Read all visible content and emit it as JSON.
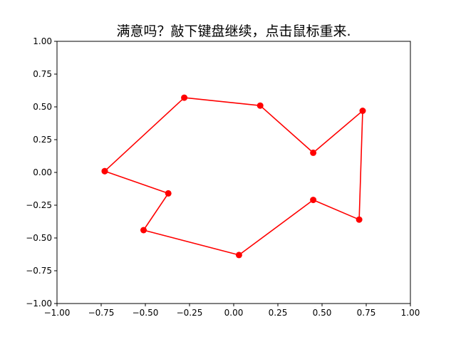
{
  "chart_data": {
    "type": "line",
    "title": "满意吗？敲下键盘继续，点击鼠标重来.",
    "xlabel": "",
    "ylabel": "",
    "xlim": [
      -1.0,
      1.0
    ],
    "ylim": [
      -1.0,
      1.0
    ],
    "xticks": [
      "−1.00",
      "−0.75",
      "−0.50",
      "−0.25",
      "0.00",
      "0.25",
      "0.50",
      "0.75",
      "1.00"
    ],
    "yticks": [
      "−1.00",
      "−0.75",
      "−0.50",
      "−0.25",
      "0.00",
      "0.25",
      "0.50",
      "0.75",
      "1.00"
    ],
    "xtick_values": [
      -1.0,
      -0.75,
      -0.5,
      -0.25,
      0.0,
      0.25,
      0.5,
      0.75,
      1.0
    ],
    "ytick_values": [
      -1.0,
      -0.75,
      -0.5,
      -0.25,
      0.0,
      0.25,
      0.5,
      0.75,
      1.0
    ],
    "grid": false,
    "legend": "none",
    "color": "#ff0000",
    "marker": "circle",
    "series": [
      {
        "x": [
          -0.73,
          -0.28,
          0.15,
          0.45,
          0.73,
          0.71,
          0.45,
          0.03,
          -0.51,
          -0.37,
          -0.73
        ],
        "y": [
          0.01,
          0.57,
          0.51,
          0.15,
          0.47,
          -0.36,
          -0.21,
          -0.63,
          -0.44,
          -0.16,
          0.01
        ]
      }
    ]
  }
}
